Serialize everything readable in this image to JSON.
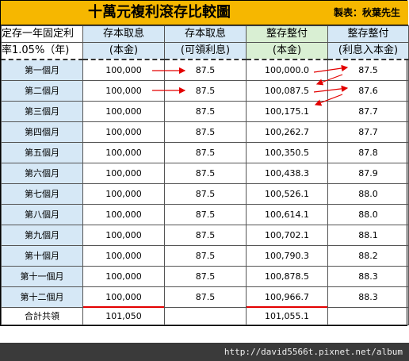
{
  "title": "十萬元複利滾存比較圖",
  "author": "製表：秋葉先生",
  "header": {
    "label_line1": "定存一年固定利",
    "label_line2": "率1.05%（年)",
    "col1_line1": "存本取息",
    "col1_line2": "(本金)",
    "col2_line1": "存本取息",
    "col2_line2": "(可領利息)",
    "col3_line1": "整存整付",
    "col3_line2": "(本金)",
    "col4_line1": "整存整付",
    "col4_line2": "(利息入本金)"
  },
  "rows": [
    {
      "month": "第一個月",
      "principal": "100,000",
      "interest": "87.5",
      "compound_principal": "100,000.0",
      "compound_interest": "87.5"
    },
    {
      "month": "第二個月",
      "principal": "100,000",
      "interest": "87.5",
      "compound_principal": "100,087.5",
      "compound_interest": "87.6"
    },
    {
      "month": "第三個月",
      "principal": "100,000",
      "interest": "87.5",
      "compound_principal": "100,175.1",
      "compound_interest": "87.7"
    },
    {
      "month": "第四個月",
      "principal": "100,000",
      "interest": "87.5",
      "compound_principal": "100,262.7",
      "compound_interest": "87.7"
    },
    {
      "month": "第五個月",
      "principal": "100,000",
      "interest": "87.5",
      "compound_principal": "100,350.5",
      "compound_interest": "87.8"
    },
    {
      "month": "第六個月",
      "principal": "100,000",
      "interest": "87.5",
      "compound_principal": "100,438.3",
      "compound_interest": "87.9"
    },
    {
      "month": "第七個月",
      "principal": "100,000",
      "interest": "87.5",
      "compound_principal": "100,526.1",
      "compound_interest": "88.0"
    },
    {
      "month": "第八個月",
      "principal": "100,000",
      "interest": "87.5",
      "compound_principal": "100,614.1",
      "compound_interest": "88.0"
    },
    {
      "month": "第九個月",
      "principal": "100,000",
      "interest": "87.5",
      "compound_principal": "100,702.1",
      "compound_interest": "88.1"
    },
    {
      "month": "第十個月",
      "principal": "100,000",
      "interest": "87.5",
      "compound_principal": "100,790.3",
      "compound_interest": "88.2"
    },
    {
      "month": "第十一個月",
      "principal": "100,000",
      "interest": "87.5",
      "compound_principal": "100,878.5",
      "compound_interest": "88.3"
    },
    {
      "month": "第十二個月",
      "principal": "100,000",
      "interest": "87.5",
      "compound_principal": "100,966.7",
      "compound_interest": "88.3"
    }
  ],
  "total": {
    "label": "合計共領",
    "principal": "101,050",
    "interest": "",
    "compound_principal": "101,055.1",
    "compound_interest": ""
  },
  "colors": {
    "title_bg": "#f6b700",
    "blue_cell": "#d6e8f6",
    "green_cell": "#d9efd3",
    "arrow_red": "#e30000"
  },
  "watermark_url": "http://david5566t.pixnet.net/album"
}
